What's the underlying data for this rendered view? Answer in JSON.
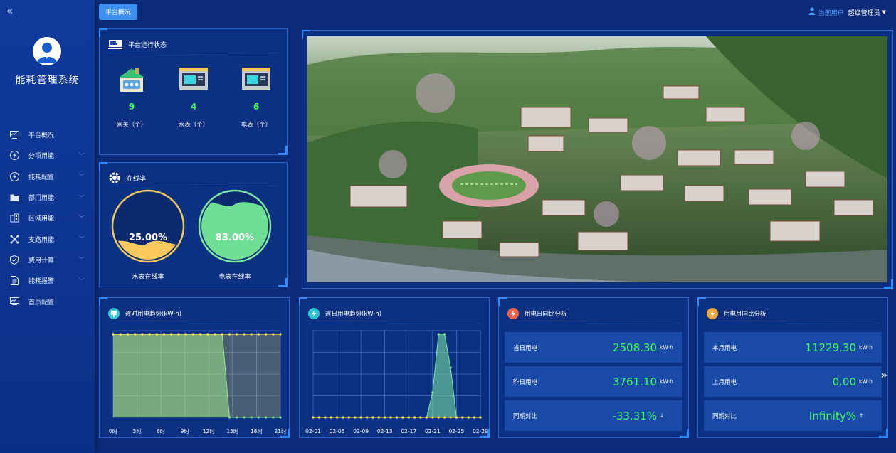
{
  "sidebar": {
    "collapse_icon": "«",
    "brand": "能耗管理系统",
    "items": [
      {
        "label": "平台概况",
        "icon": "monitor-icon"
      },
      {
        "label": "分项用能",
        "icon": "lightning-icon"
      },
      {
        "label": "能耗配置",
        "icon": "lightning-icon"
      },
      {
        "label": "部门用能",
        "icon": "folder-icon"
      },
      {
        "label": "区域用能",
        "icon": "building-icon"
      },
      {
        "label": "支路用能",
        "icon": "network-icon"
      },
      {
        "label": "费用计算",
        "icon": "shield-icon"
      },
      {
        "label": "能耗报警",
        "icon": "document-icon"
      },
      {
        "label": "首页配置",
        "icon": "monitor-icon"
      }
    ]
  },
  "header": {
    "tab_label": "平台概况",
    "user_prefix": "当前用户",
    "user_name": "超级管理员"
  },
  "status_panel": {
    "title": "平台运行状态",
    "devices": [
      {
        "count": "9",
        "label": "网关（个）"
      },
      {
        "count": "4",
        "label": "水表（个）"
      },
      {
        "count": "6",
        "label": "电表（个）"
      }
    ]
  },
  "online_panel": {
    "title": "在线率",
    "water": {
      "value_text": "25.00%",
      "fraction": 0.25,
      "label": "水表在线率"
    },
    "electric": {
      "value_text": "83.00%",
      "fraction": 0.83,
      "label": "电表在线率"
    }
  },
  "hourly_panel": {
    "title": "逐时用电趋势(kW·h)"
  },
  "daily_panel": {
    "title": "逐日用电趋势(kW·h)"
  },
  "day_compare": {
    "title": "用电日同比分析",
    "rows": [
      {
        "label": "当日用电",
        "value": "2508.30",
        "unit": "kW·h"
      },
      {
        "label": "昨日用电",
        "value": "3761.10",
        "unit": "kW·h"
      },
      {
        "label": "同期对比",
        "value": "-33.31%",
        "unit": "↓"
      }
    ]
  },
  "month_compare": {
    "title": "用电月同比分析",
    "rows": [
      {
        "label": "本月用电",
        "value": "11229.30",
        "unit": "kW·h"
      },
      {
        "label": "上月用电",
        "value": "0.00",
        "unit": "kW·h"
      },
      {
        "label": "同期对比",
        "value": "Infinity%",
        "unit": "↑"
      }
    ]
  },
  "chart_data": [
    {
      "type": "area",
      "title": "逐时用电趋势(kW·h)",
      "categories": [
        "0时",
        "3时",
        "6时",
        "9时",
        "12时",
        "15时",
        "18时",
        "21时"
      ],
      "x": [
        0,
        1,
        2,
        3,
        4,
        5,
        6,
        7,
        8,
        9,
        10,
        11,
        12,
        13,
        14,
        15,
        16,
        17,
        18,
        19,
        20,
        21,
        22,
        23
      ],
      "series": [
        {
          "values": [
            1,
            1,
            1,
            1,
            1,
            1,
            1,
            1,
            1,
            1,
            1,
            1,
            1,
            1,
            1,
            1,
            0,
            0,
            0,
            0,
            0,
            0,
            0,
            0
          ],
          "color": "#7de9a0"
        },
        {
          "values": [
            1,
            1,
            1,
            1,
            1,
            1,
            1,
            1,
            1,
            1,
            1,
            1,
            1,
            1,
            1,
            1,
            1,
            1,
            1,
            1,
            1,
            1,
            1,
            1
          ],
          "color": "#ffe94a"
        }
      ],
      "grid": true
    },
    {
      "type": "area",
      "title": "逐日用电趋势(kW·h)",
      "categories": [
        "02-01",
        "02-05",
        "02-09",
        "02-13",
        "02-17",
        "02-21",
        "02-25",
        "02-29"
      ],
      "x": [
        1,
        2,
        3,
        4,
        5,
        6,
        7,
        8,
        9,
        10,
        11,
        12,
        13,
        14,
        15,
        16,
        17,
        18,
        19,
        20,
        21,
        22,
        23,
        24,
        25,
        26,
        27,
        28,
        29
      ],
      "series": [
        {
          "values": [
            0,
            0,
            0,
            0,
            0,
            0,
            0,
            0,
            0,
            0,
            0,
            0,
            0,
            0,
            0,
            0,
            0,
            0,
            0,
            0,
            0.3,
            1,
            1,
            0.6,
            0,
            0,
            0,
            0,
            0
          ],
          "color": "#7de9a0"
        },
        {
          "values": [
            0,
            0,
            0,
            0,
            0,
            0,
            0,
            0,
            0,
            0,
            0,
            0,
            0,
            0,
            0,
            0,
            0,
            0,
            0,
            0,
            0,
            0,
            0,
            0,
            0,
            0,
            0,
            0,
            0
          ],
          "color": "#ffe94a"
        }
      ],
      "grid": true
    }
  ]
}
